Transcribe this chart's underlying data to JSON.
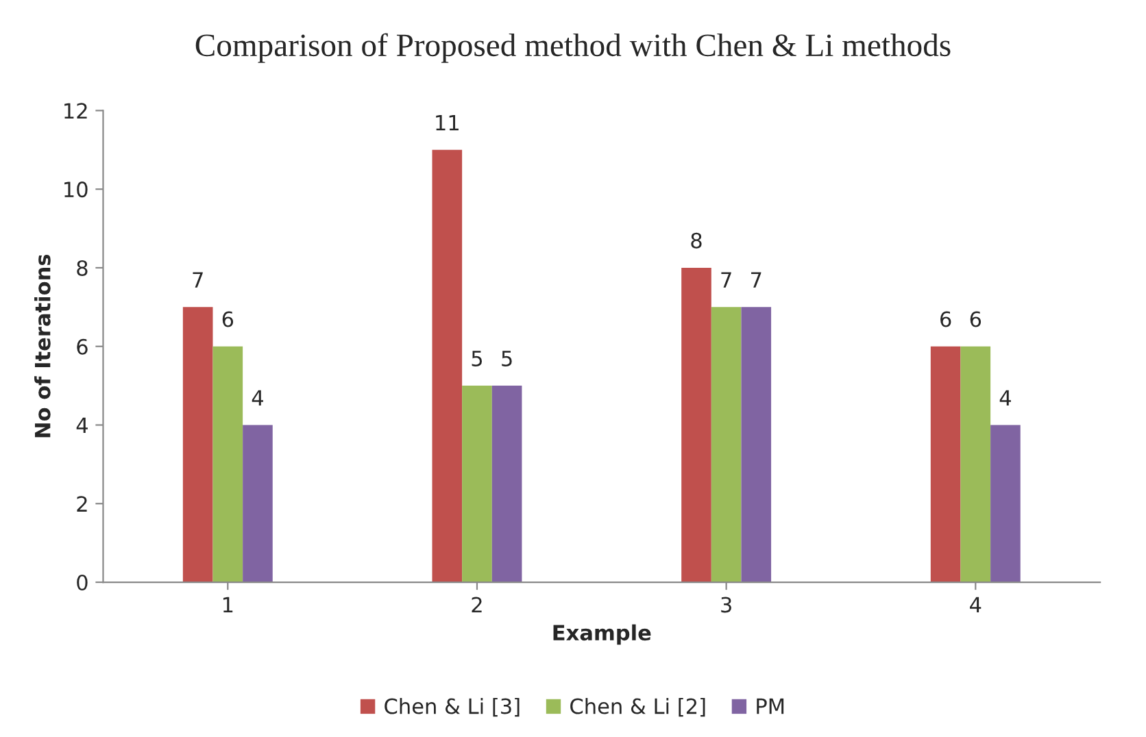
{
  "chart_data": {
    "type": "bar",
    "title": "Comparison of Proposed method with Chen & Li methods",
    "xlabel": "Example",
    "ylabel": "No of Iterations",
    "categories": [
      "1",
      "2",
      "3",
      "4"
    ],
    "series": [
      {
        "name": "Chen & Li [3]",
        "color": "#c0504d",
        "values": [
          7,
          11,
          8,
          6
        ]
      },
      {
        "name": "Chen & Li [2]",
        "color": "#9bbb59",
        "values": [
          6,
          5,
          7,
          6
        ]
      },
      {
        "name": "PM",
        "color": "#8064a2",
        "values": [
          4,
          5,
          7,
          4
        ]
      }
    ],
    "ylim": [
      0,
      12
    ],
    "yticks": [
      0,
      2,
      4,
      6,
      8,
      10,
      12
    ],
    "grid": false,
    "legend": "bottom",
    "data_labels": true
  }
}
